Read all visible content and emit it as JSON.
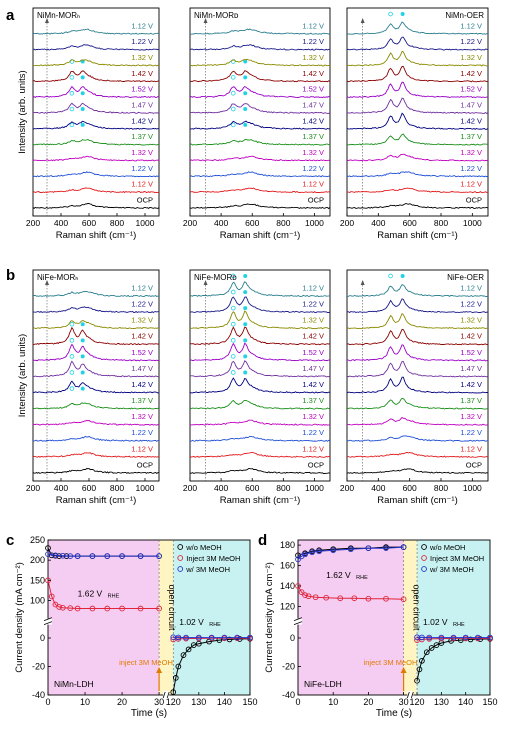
{
  "panel_labels": [
    "a",
    "b",
    "c",
    "d"
  ],
  "colors": {
    "trace": [
      "#000000",
      "#e41a1c",
      "#1f4fd6",
      "#c000c0",
      "#1a8f1a",
      "#000080",
      "#7030a0",
      "#9b00c8",
      "#8b0000",
      "#8a8a00",
      "#1a1a8a",
      "#2a7f8f"
    ],
    "voltage_label": [
      "#000000",
      "#e41a1c",
      "#1f4fd6",
      "#c000c0",
      "#1a8f1a",
      "#000080",
      "#7030a0",
      "#9b00c8",
      "#8b0000",
      "#8a8a00",
      "#1a1a8a",
      "#2a7f8f"
    ],
    "peak_marker": "#22d3e6",
    "bg_c": [
      "#f6cdf2",
      "#fff5c2",
      "#c8f2f2"
    ],
    "bg_d": [
      "#f6cdf2",
      "#fff5c2",
      "#c8f2f2"
    ]
  },
  "raman": {
    "xlabel": "Raman shift (cm⁻¹)",
    "ylabel": "Intensity (arb. units)",
    "xticks": [
      200,
      400,
      600,
      800,
      1000
    ],
    "voltages": [
      "OCP",
      "1.12 V",
      "1.22 V",
      "1.32 V",
      "1.37 V",
      "1.42 V",
      "1.47 V",
      "1.52 V",
      "1.42 V",
      "1.32 V",
      "1.22 V",
      "1.12 V"
    ]
  },
  "chart_data": [
    {
      "type": "line",
      "panel": "a",
      "title": "NiMn-MORₕ",
      "x_range": [
        200,
        1100
      ],
      "series_labels": [
        "OCP",
        "1.12 V",
        "1.22 V",
        "1.32 V",
        "1.37 V",
        "1.42 V",
        "1.47 V",
        "1.52 V",
        "1.42 V",
        "1.32 V",
        "1.22 V",
        "1.12 V"
      ],
      "peaks_cm": [
        475,
        555
      ]
    },
    {
      "type": "line",
      "panel": "a",
      "title": "NiMn-MORᴅ",
      "x_range": [
        200,
        1100
      ],
      "series_labels": [
        "OCP",
        "1.12 V",
        "1.22 V",
        "1.32 V",
        "1.37 V",
        "1.42 V",
        "1.47 V",
        "1.52 V",
        "1.42 V",
        "1.32 V",
        "1.22 V",
        "1.12 V"
      ],
      "peaks_cm": [
        475,
        555
      ]
    },
    {
      "type": "line",
      "panel": "a",
      "title": "NiMn-OER",
      "x_range": [
        200,
        1100
      ],
      "series_labels": [
        "OCP",
        "1.12 V",
        "1.22 V",
        "1.32 V",
        "1.37 V",
        "1.42 V",
        "1.47 V",
        "1.52 V",
        "1.42 V",
        "1.32 V",
        "1.22 V",
        "1.12 V"
      ],
      "peaks_cm": [
        475,
        555
      ]
    },
    {
      "type": "line",
      "panel": "b",
      "title": "NiFe-MORₕ",
      "x_range": [
        200,
        1100
      ],
      "series_labels": [
        "OCP",
        "1.12 V",
        "1.22 V",
        "1.32 V",
        "1.37 V",
        "1.42 V",
        "1.47 V",
        "1.52 V",
        "1.42 V",
        "1.32 V",
        "1.22 V",
        "1.12 V"
      ],
      "peaks_cm": [
        475,
        555
      ]
    },
    {
      "type": "line",
      "panel": "b",
      "title": "NiFe-MORᴅ",
      "x_range": [
        200,
        1100
      ],
      "series_labels": [
        "OCP",
        "1.12 V",
        "1.22 V",
        "1.32 V",
        "1.37 V",
        "1.42 V",
        "1.47 V",
        "1.52 V",
        "1.42 V",
        "1.32 V",
        "1.22 V",
        "1.12 V"
      ],
      "peaks_cm": [
        475,
        555
      ]
    },
    {
      "type": "line",
      "panel": "b",
      "title": "NiFe-OER",
      "x_range": [
        200,
        1100
      ],
      "series_labels": [
        "OCP",
        "1.12 V",
        "1.22 V",
        "1.32 V",
        "1.37 V",
        "1.42 V",
        "1.47 V",
        "1.52 V",
        "1.42 V",
        "1.32 V",
        "1.22 V",
        "1.12 V"
      ],
      "peaks_cm": [
        475,
        555
      ]
    },
    {
      "type": "line",
      "panel": "c",
      "xlabel": "Time (s)",
      "ylabel": "Current density (mA cm⁻²)",
      "sample_label": "NiMn-LDH",
      "xticks": [
        "0",
        "10",
        "20",
        "30",
        "120",
        "130",
        "140",
        "150"
      ],
      "yticks": [
        "250",
        "200",
        "150",
        "100",
        "0",
        "-20",
        "-40"
      ],
      "legend": [
        "w/o MeOH",
        "Inject 3M MeOH",
        "w/ 3M MeOH"
      ],
      "annotations": {
        "potential_high": "1.62 V",
        "potential_high_sub": "RHE",
        "open_circuit": "open circuit",
        "inject": "inject 3M MeOH",
        "potential_low": "1.02 V",
        "potential_low_sub": "RHE"
      },
      "series": [
        {
          "name": "w/o MeOH",
          "x": [
            0,
            1,
            2,
            3,
            5,
            8,
            12,
            16,
            20,
            25,
            30
          ],
          "y": [
            230,
            212,
            211,
            210,
            210,
            210,
            210,
            210,
            210,
            210,
            210
          ]
        },
        {
          "name": "Inject 3M MeOH",
          "x": [
            0,
            1,
            2,
            3,
            4,
            6,
            8,
            12,
            16,
            20,
            25,
            30
          ],
          "y": [
            150,
            110,
            90,
            84,
            82,
            81,
            80,
            80,
            80,
            80,
            80,
            80
          ]
        },
        {
          "name": "w/ 3M MeOH",
          "x": [
            0,
            2,
            4,
            6,
            8,
            12,
            16,
            20,
            25,
            30
          ],
          "y": [
            215,
            212,
            211,
            210,
            210,
            210,
            210,
            210,
            210,
            210
          ]
        },
        {
          "name": "w/o MeOH (open circuit)",
          "x": [
            120,
            121,
            122,
            124,
            126,
            128,
            130,
            134,
            138,
            142,
            146,
            150
          ],
          "y": [
            -38,
            -28,
            -20,
            -12,
            -8,
            -5,
            -4,
            -2.5,
            -1.5,
            -1,
            -0.7,
            -0.5
          ]
        },
        {
          "name": "Inject 3M MeOH (open circuit)",
          "x": [
            120,
            122,
            125,
            130,
            135,
            140,
            145,
            150
          ],
          "y": [
            -1,
            -0.6,
            -0.4,
            -0.3,
            -0.2,
            -0.2,
            -0.2,
            -0.2
          ]
        },
        {
          "name": "w/ 3M MeOH (open circuit)",
          "x": [
            120,
            122,
            125,
            130,
            135,
            140,
            145,
            150
          ],
          "y": [
            0.5,
            0.4,
            0.3,
            0.3,
            0.3,
            0.3,
            0.3,
            0.3
          ]
        }
      ]
    },
    {
      "type": "line",
      "panel": "d",
      "xlabel": "Time (s)",
      "ylabel": "Current density (mA cm⁻²)",
      "sample_label": "NiFe-LDH",
      "xticks": [
        "0",
        "10",
        "20",
        "30",
        "120",
        "130",
        "140",
        "150"
      ],
      "yticks": [
        "180",
        "160",
        "140",
        "120",
        "0",
        "-20",
        "-40"
      ],
      "legend": [
        "w/o MeOH",
        "Inject 3M MeOH",
        "w/ 3M MeOH"
      ],
      "annotations": {
        "potential_high": "1.62 V",
        "potential_high_sub": "RHE",
        "open_circuit": "open circuit",
        "inject": "inject 3M MeOH",
        "potential_low": "1.02 V",
        "potential_low_sub": "RHE"
      },
      "series": [
        {
          "name": "w/o MeOH",
          "x": [
            0,
            2,
            4,
            6,
            10,
            15,
            20,
            25,
            30
          ],
          "y": [
            170,
            172,
            174,
            175,
            176,
            177,
            177,
            178,
            178
          ]
        },
        {
          "name": "Inject 3M MeOH",
          "x": [
            0,
            1,
            2,
            3,
            5,
            8,
            12,
            16,
            20,
            25,
            30
          ],
          "y": [
            140,
            134,
            131,
            130,
            129,
            128.5,
            128,
            128,
            127.5,
            127.5,
            127
          ]
        },
        {
          "name": "w/ 3M MeOH",
          "x": [
            0,
            1,
            2,
            4,
            6,
            10,
            15,
            20,
            25,
            30
          ],
          "y": [
            166,
            169,
            171,
            173,
            174,
            175,
            176,
            177,
            177,
            178
          ]
        },
        {
          "name": "w/o MeOH (open circuit)",
          "x": [
            120,
            121,
            122,
            124,
            126,
            128,
            130,
            134,
            138,
            142,
            146,
            150
          ],
          "y": [
            -30,
            -22,
            -16,
            -10,
            -7,
            -5,
            -3.5,
            -2,
            -1.5,
            -1,
            -0.8,
            -0.6
          ]
        },
        {
          "name": "Inject 3M MeOH (open circuit)",
          "x": [
            120,
            122,
            125,
            130,
            135,
            140,
            145,
            150
          ],
          "y": [
            -1.5,
            -1,
            -0.6,
            -0.4,
            -0.3,
            -0.3,
            -0.3,
            -0.3
          ]
        },
        {
          "name": "w/ 3M MeOH (open circuit)",
          "x": [
            120,
            122,
            125,
            130,
            135,
            140,
            145,
            150
          ],
          "y": [
            0.5,
            0.4,
            0.3,
            0.3,
            0.3,
            0.3,
            0.3,
            0.3
          ]
        }
      ]
    }
  ]
}
